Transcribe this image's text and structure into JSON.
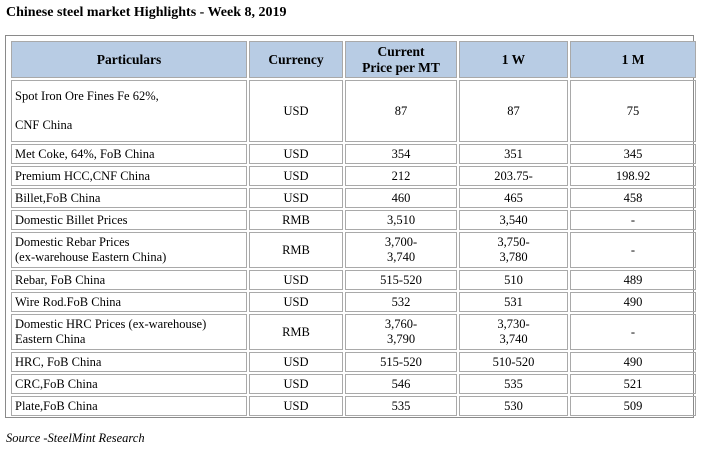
{
  "title": "Chinese steel market Highlights - Week 8, 2019",
  "headers": {
    "particulars": "Particulars",
    "currency": "Currency",
    "current_line1": "Current",
    "current_line2": "Price per MT",
    "one_w": "1 W",
    "one_m": "1 M"
  },
  "rows": [
    {
      "p1": "Spot Iron Ore Fines Fe 62%,",
      "p2": "CNF China",
      "currency": "USD",
      "current": "87",
      "w": "87",
      "m": "75"
    },
    {
      "p1": "Met Coke, 64%, FoB China",
      "currency": "USD",
      "current": "354",
      "w": "351",
      "m": "345"
    },
    {
      "p1": "Premium HCC,CNF China",
      "currency": "USD",
      "current": "212",
      "w": "203.75-",
      "m": "198.92"
    },
    {
      "p1": "Billet,FoB China",
      "currency": "USD",
      "current": "460",
      "w": "465",
      "m": "458"
    },
    {
      "p1": "Domestic Billet Prices",
      "currency": "RMB",
      "current": "3,510",
      "w": "3,540",
      "m": "-"
    },
    {
      "p1": "Domestic Rebar Prices",
      "p2": "(ex-warehouse Eastern China)",
      "currency": "RMB",
      "current": "3,700-",
      "current2": "3,740",
      "w": "3,750-",
      "w2": "3,780",
      "m": "-"
    },
    {
      "p1": "Rebar, FoB China",
      "currency": "USD",
      "current": "515-520",
      "w": "510",
      "m": "489"
    },
    {
      "p1": "Wire Rod.FoB China",
      "currency": "USD",
      "current": "532",
      "w": "531",
      "m": "490"
    },
    {
      "p1": "Domestic HRC Prices (ex-warehouse)",
      "p2": "Eastern China",
      "currency": "RMB",
      "current": "3,760-",
      "current2": "3,790",
      "w": "3,730-",
      "w2": "3,740",
      "m": "-"
    },
    {
      "p1": "HRC, FoB China",
      "currency": "USD",
      "current": "515-520",
      "w": "510-520",
      "m": "490"
    },
    {
      "p1": "CRC,FoB China",
      "currency": "USD",
      "current": "546",
      "w": "535",
      "m": "521"
    },
    {
      "p1": "Plate,FoB China",
      "currency": "USD",
      "current": "535",
      "w": "530",
      "m": "509"
    }
  ],
  "source": "Source -SteelMint Research"
}
